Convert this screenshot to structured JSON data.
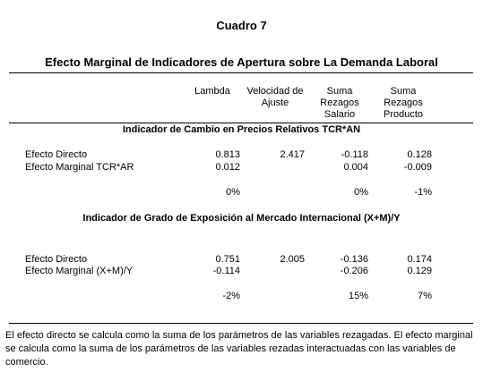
{
  "title": "Cuadro 7",
  "subtitle": "Efecto Marginal de Indicadores de Apertura sobre La Demanda Laboral",
  "columns": [
    "Lambda",
    "Velocidad de Ajuste",
    "Suma Rezagos Salario",
    "Suma Rezagos Producto"
  ],
  "column_lines": [
    [
      "Lambda"
    ],
    [
      "Velocidad de",
      "Ajuste"
    ],
    [
      "Suma",
      "Rezagos",
      "Salario"
    ],
    [
      "Suma",
      "Rezagos",
      "Producto"
    ]
  ],
  "sections": [
    {
      "heading": "Indicador de Cambio en Precios Relativos TCR*AN",
      "rows": [
        {
          "label": "Efecto Directo",
          "values": [
            "0.813",
            "2.417",
            "-0.118",
            "0.128"
          ]
        },
        {
          "label": "Efecto Marginal TCR*AR",
          "values": [
            "0.012",
            "",
            "0.004",
            "-0.009"
          ]
        },
        {
          "label": "",
          "values": [
            "0%",
            "",
            "0%",
            "-1%"
          ]
        }
      ]
    },
    {
      "heading": "Indicador de Grado de Exposición al Mercado Internacional (X+M)/Y",
      "rows": [
        {
          "label": "Efecto Directo",
          "values": [
            "0.751",
            "2.005",
            "-0.136",
            "0.174"
          ]
        },
        {
          "label": "Efecto Marginal (X+M)/Y",
          "values": [
            "-0.114",
            "",
            "-0.206",
            "0.129"
          ]
        },
        {
          "label": "",
          "values": [
            "-2%",
            "",
            "15%",
            "7%"
          ]
        }
      ]
    }
  ],
  "footnote": "El efecto directo se calcula como la suma de los parámetros de las variables rezagadas. El efecto marginal se calcula como la suma de los parámetros de las variables rezadas interactuadas con las variables de comercio."
}
